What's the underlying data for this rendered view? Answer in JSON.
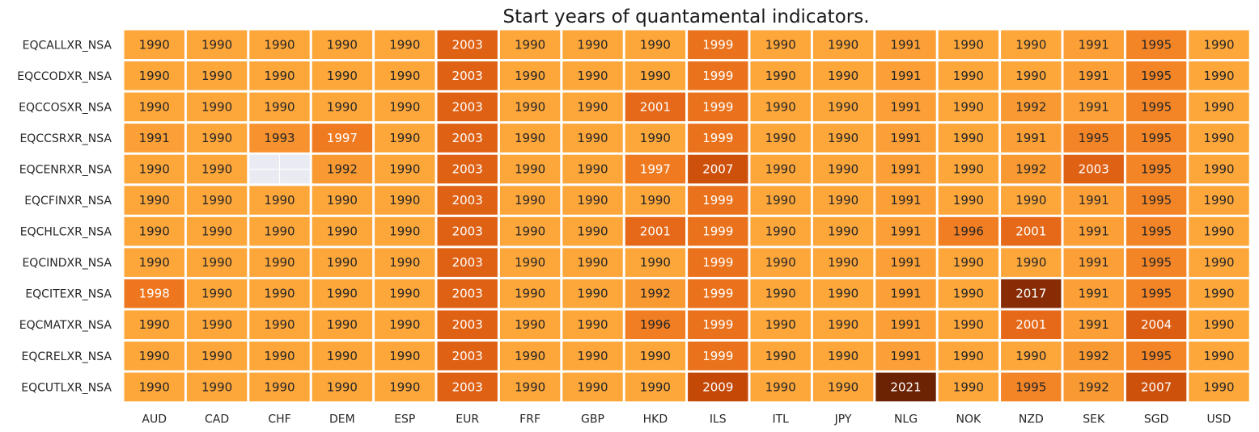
{
  "chart_data": {
    "type": "heatmap",
    "title": "Start years of quantamental indicators.",
    "xlabel": "",
    "ylabel": "",
    "columns": [
      "AUD",
      "CAD",
      "CHF",
      "DEM",
      "ESP",
      "EUR",
      "FRF",
      "GBP",
      "HKD",
      "ILS",
      "ITL",
      "JPY",
      "NLG",
      "NOK",
      "NZD",
      "SEK",
      "SGD",
      "USD"
    ],
    "rows": [
      "EQCALLXR_NSA",
      "EQCCODXR_NSA",
      "EQCCOSXR_NSA",
      "EQCCSRXR_NSA",
      "EQCENRXR_NSA",
      "EQCFINXR_NSA",
      "EQCHLCXR_NSA",
      "EQCINDXR_NSA",
      "EQCITEXR_NSA",
      "EQCMATXR_NSA",
      "EQCRELXR_NSA",
      "EQCUTLXR_NSA"
    ],
    "values": [
      [
        1990,
        1990,
        1990,
        1990,
        1990,
        2003,
        1990,
        1990,
        1990,
        1999,
        1990,
        1990,
        1991,
        1990,
        1990,
        1991,
        1995,
        1990
      ],
      [
        1990,
        1990,
        1990,
        1990,
        1990,
        2003,
        1990,
        1990,
        1990,
        1999,
        1990,
        1990,
        1991,
        1990,
        1990,
        1991,
        1995,
        1990
      ],
      [
        1990,
        1990,
        1990,
        1990,
        1990,
        2003,
        1990,
        1990,
        2001,
        1999,
        1990,
        1990,
        1991,
        1990,
        1992,
        1991,
        1995,
        1990
      ],
      [
        1991,
        1990,
        1993,
        1997,
        1990,
        2003,
        1990,
        1990,
        1990,
        1999,
        1990,
        1990,
        1991,
        1990,
        1991,
        1995,
        1995,
        1990
      ],
      [
        1990,
        1990,
        null,
        1992,
        1990,
        2003,
        1990,
        1990,
        1997,
        2007,
        1990,
        1990,
        1991,
        1990,
        1992,
        2003,
        1995,
        1990
      ],
      [
        1990,
        1990,
        1990,
        1990,
        1990,
        2003,
        1990,
        1990,
        1990,
        1999,
        1990,
        1990,
        1991,
        1990,
        1990,
        1991,
        1995,
        1990
      ],
      [
        1990,
        1990,
        1990,
        1990,
        1990,
        2003,
        1990,
        1990,
        2001,
        1999,
        1990,
        1990,
        1991,
        1996,
        2001,
        1991,
        1995,
        1990
      ],
      [
        1990,
        1990,
        1990,
        1990,
        1990,
        2003,
        1990,
        1990,
        1990,
        1999,
        1990,
        1990,
        1991,
        1990,
        1990,
        1991,
        1995,
        1990
      ],
      [
        1998,
        1990,
        1990,
        1990,
        1990,
        2003,
        1990,
        1990,
        1992,
        1999,
        1990,
        1990,
        1991,
        1990,
        2017,
        1991,
        1995,
        1990
      ],
      [
        1990,
        1990,
        1990,
        1990,
        1990,
        2003,
        1990,
        1990,
        1996,
        1999,
        1990,
        1990,
        1991,
        1990,
        2001,
        1991,
        2004,
        1990
      ],
      [
        1990,
        1990,
        1990,
        1990,
        1990,
        2003,
        1990,
        1990,
        1990,
        1999,
        1990,
        1990,
        1991,
        1990,
        1990,
        1992,
        1995,
        1990
      ],
      [
        1990,
        1990,
        1990,
        1990,
        1990,
        2003,
        1990,
        1990,
        1990,
        2009,
        1990,
        1990,
        2021,
        1990,
        1995,
        1992,
        2007,
        1990
      ]
    ],
    "color_range": [
      1990,
      2021
    ],
    "colormap": "YlOrBr",
    "missing_color": "#e9eaf2",
    "colorbar": false
  }
}
